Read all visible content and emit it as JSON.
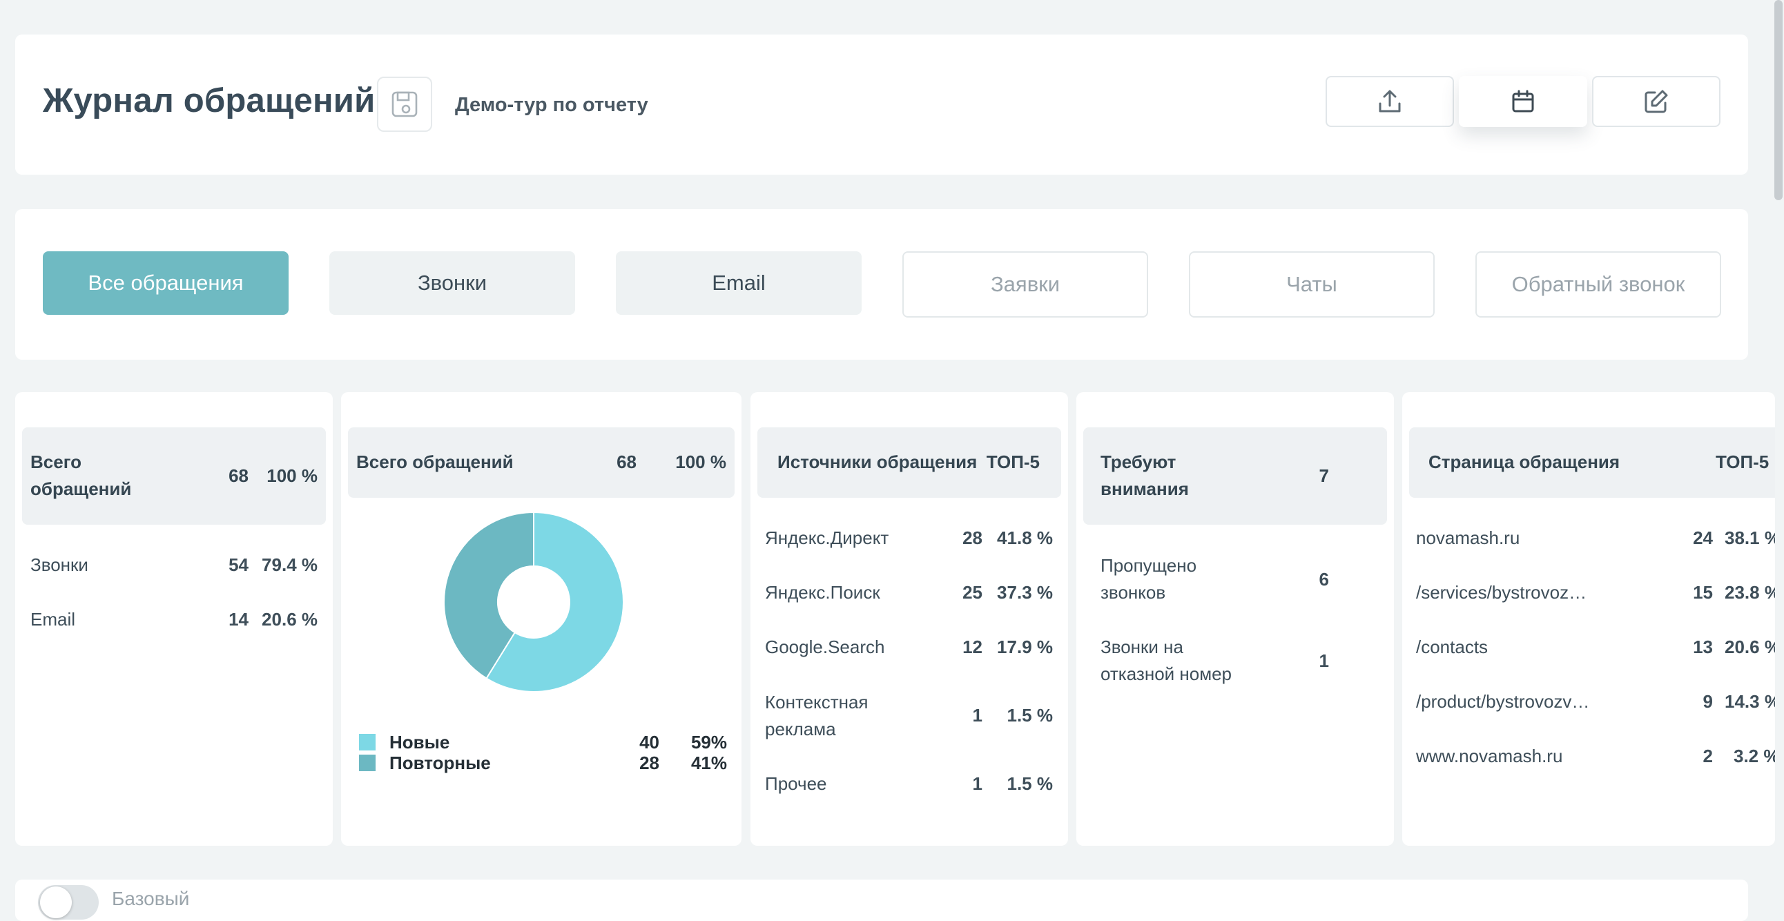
{
  "header": {
    "title": "Журнал обращений",
    "demo_link": "Демо-тур по отчету",
    "icons": [
      "save-icon",
      "upload-icon",
      "calendar-icon",
      "edit-icon"
    ]
  },
  "tabs": [
    {
      "label": "Все обращения",
      "state": "active"
    },
    {
      "label": "Звонки",
      "state": "enabled"
    },
    {
      "label": "Email",
      "state": "enabled"
    },
    {
      "label": "Заявки",
      "state": "disabled"
    },
    {
      "label": "Чаты",
      "state": "disabled"
    },
    {
      "label": "Обратный звонок",
      "state": "disabled"
    }
  ],
  "panel_total": {
    "header": {
      "label": "Всего обращений",
      "value": "68",
      "percent": "100 %"
    },
    "rows": [
      {
        "label": "Звонки",
        "value": "54",
        "percent": "79.4 %"
      },
      {
        "label": "Email",
        "value": "14",
        "percent": "20.6 %"
      }
    ]
  },
  "panel_pie": {
    "header": {
      "label": "Всего обращений",
      "value": "68",
      "percent": "100 %"
    },
    "legend": [
      {
        "label": "Новые",
        "value": "40",
        "percent": "59%",
        "color": "#7dd8e5"
      },
      {
        "label": "Повторные",
        "value": "28",
        "percent": "41%",
        "color": "#6cb8c2"
      }
    ]
  },
  "chart_data": {
    "type": "pie",
    "donut": true,
    "title": "",
    "categories": [
      "Новые",
      "Повторные"
    ],
    "values": [
      40,
      28
    ],
    "colors": [
      "#7dd8e5",
      "#6cb8c2"
    ]
  },
  "panel_sources": {
    "header": {
      "label": "Источники обращения",
      "badge": "ТОП-5"
    },
    "rows": [
      {
        "label": "Яндекс.Директ",
        "value": "28",
        "percent": "41.8 %"
      },
      {
        "label": "Яндекс.Поиск",
        "value": "25",
        "percent": "37.3 %"
      },
      {
        "label": "Google.Search",
        "value": "12",
        "percent": "17.9 %"
      },
      {
        "label": "Контекстная реклама",
        "value": "1",
        "percent": "1.5 %"
      },
      {
        "label": "Прочее",
        "value": "1",
        "percent": "1.5 %"
      }
    ]
  },
  "panel_attention": {
    "header": {
      "label": "Требуют внимания",
      "value": "7"
    },
    "rows": [
      {
        "label": "Пропущено звонков",
        "value": "6"
      },
      {
        "label": "Звонки на отказной номер",
        "value": "1"
      }
    ]
  },
  "panel_pages": {
    "header": {
      "label": "Страница обращения",
      "badge": "ТОП-5"
    },
    "rows": [
      {
        "label": "novamash.ru",
        "value": "24",
        "percent": "38.1 %"
      },
      {
        "label": "/services/bystrovoz…",
        "value": "15",
        "percent": "23.8 %"
      },
      {
        "label": "/contacts",
        "value": "13",
        "percent": "20.6 %"
      },
      {
        "label": "/product/bystrovozv…",
        "value": "9",
        "percent": "14.3 %"
      },
      {
        "label": "www.novamash.ru",
        "value": "2",
        "percent": "3.2 %"
      }
    ]
  },
  "footer": {
    "toggle_label": "Базовый",
    "toggle_on": false
  }
}
